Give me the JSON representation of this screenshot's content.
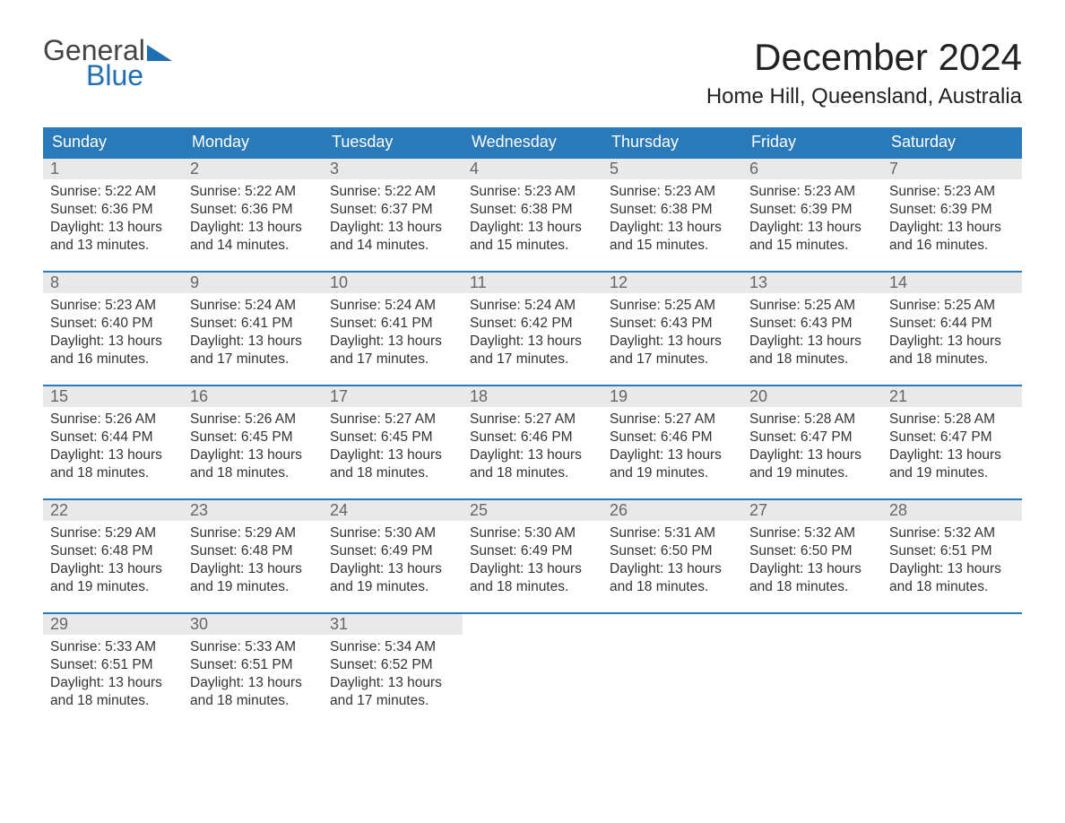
{
  "logo": {
    "text1": "General",
    "text2": "Blue",
    "color1": "#444444",
    "color2": "#1f6fb2"
  },
  "title": "December 2024",
  "location": "Home Hill, Queensland, Australia",
  "header_bg": "#2a7ab9",
  "daynum_bg": "#e9e9e9",
  "week_border": "#2a7ab9",
  "day_headers": [
    "Sunday",
    "Monday",
    "Tuesday",
    "Wednesday",
    "Thursday",
    "Friday",
    "Saturday"
  ],
  "weeks": [
    [
      {
        "n": "1",
        "sr": "Sunrise: 5:22 AM",
        "ss": "Sunset: 6:36 PM",
        "d1": "Daylight: 13 hours",
        "d2": "and 13 minutes."
      },
      {
        "n": "2",
        "sr": "Sunrise: 5:22 AM",
        "ss": "Sunset: 6:36 PM",
        "d1": "Daylight: 13 hours",
        "d2": "and 14 minutes."
      },
      {
        "n": "3",
        "sr": "Sunrise: 5:22 AM",
        "ss": "Sunset: 6:37 PM",
        "d1": "Daylight: 13 hours",
        "d2": "and 14 minutes."
      },
      {
        "n": "4",
        "sr": "Sunrise: 5:23 AM",
        "ss": "Sunset: 6:38 PM",
        "d1": "Daylight: 13 hours",
        "d2": "and 15 minutes."
      },
      {
        "n": "5",
        "sr": "Sunrise: 5:23 AM",
        "ss": "Sunset: 6:38 PM",
        "d1": "Daylight: 13 hours",
        "d2": "and 15 minutes."
      },
      {
        "n": "6",
        "sr": "Sunrise: 5:23 AM",
        "ss": "Sunset: 6:39 PM",
        "d1": "Daylight: 13 hours",
        "d2": "and 15 minutes."
      },
      {
        "n": "7",
        "sr": "Sunrise: 5:23 AM",
        "ss": "Sunset: 6:39 PM",
        "d1": "Daylight: 13 hours",
        "d2": "and 16 minutes."
      }
    ],
    [
      {
        "n": "8",
        "sr": "Sunrise: 5:23 AM",
        "ss": "Sunset: 6:40 PM",
        "d1": "Daylight: 13 hours",
        "d2": "and 16 minutes."
      },
      {
        "n": "9",
        "sr": "Sunrise: 5:24 AM",
        "ss": "Sunset: 6:41 PM",
        "d1": "Daylight: 13 hours",
        "d2": "and 17 minutes."
      },
      {
        "n": "10",
        "sr": "Sunrise: 5:24 AM",
        "ss": "Sunset: 6:41 PM",
        "d1": "Daylight: 13 hours",
        "d2": "and 17 minutes."
      },
      {
        "n": "11",
        "sr": "Sunrise: 5:24 AM",
        "ss": "Sunset: 6:42 PM",
        "d1": "Daylight: 13 hours",
        "d2": "and 17 minutes."
      },
      {
        "n": "12",
        "sr": "Sunrise: 5:25 AM",
        "ss": "Sunset: 6:43 PM",
        "d1": "Daylight: 13 hours",
        "d2": "and 17 minutes."
      },
      {
        "n": "13",
        "sr": "Sunrise: 5:25 AM",
        "ss": "Sunset: 6:43 PM",
        "d1": "Daylight: 13 hours",
        "d2": "and 18 minutes."
      },
      {
        "n": "14",
        "sr": "Sunrise: 5:25 AM",
        "ss": "Sunset: 6:44 PM",
        "d1": "Daylight: 13 hours",
        "d2": "and 18 minutes."
      }
    ],
    [
      {
        "n": "15",
        "sr": "Sunrise: 5:26 AM",
        "ss": "Sunset: 6:44 PM",
        "d1": "Daylight: 13 hours",
        "d2": "and 18 minutes."
      },
      {
        "n": "16",
        "sr": "Sunrise: 5:26 AM",
        "ss": "Sunset: 6:45 PM",
        "d1": "Daylight: 13 hours",
        "d2": "and 18 minutes."
      },
      {
        "n": "17",
        "sr": "Sunrise: 5:27 AM",
        "ss": "Sunset: 6:45 PM",
        "d1": "Daylight: 13 hours",
        "d2": "and 18 minutes."
      },
      {
        "n": "18",
        "sr": "Sunrise: 5:27 AM",
        "ss": "Sunset: 6:46 PM",
        "d1": "Daylight: 13 hours",
        "d2": "and 18 minutes."
      },
      {
        "n": "19",
        "sr": "Sunrise: 5:27 AM",
        "ss": "Sunset: 6:46 PM",
        "d1": "Daylight: 13 hours",
        "d2": "and 19 minutes."
      },
      {
        "n": "20",
        "sr": "Sunrise: 5:28 AM",
        "ss": "Sunset: 6:47 PM",
        "d1": "Daylight: 13 hours",
        "d2": "and 19 minutes."
      },
      {
        "n": "21",
        "sr": "Sunrise: 5:28 AM",
        "ss": "Sunset: 6:47 PM",
        "d1": "Daylight: 13 hours",
        "d2": "and 19 minutes."
      }
    ],
    [
      {
        "n": "22",
        "sr": "Sunrise: 5:29 AM",
        "ss": "Sunset: 6:48 PM",
        "d1": "Daylight: 13 hours",
        "d2": "and 19 minutes."
      },
      {
        "n": "23",
        "sr": "Sunrise: 5:29 AM",
        "ss": "Sunset: 6:48 PM",
        "d1": "Daylight: 13 hours",
        "d2": "and 19 minutes."
      },
      {
        "n": "24",
        "sr": "Sunrise: 5:30 AM",
        "ss": "Sunset: 6:49 PM",
        "d1": "Daylight: 13 hours",
        "d2": "and 19 minutes."
      },
      {
        "n": "25",
        "sr": "Sunrise: 5:30 AM",
        "ss": "Sunset: 6:49 PM",
        "d1": "Daylight: 13 hours",
        "d2": "and 18 minutes."
      },
      {
        "n": "26",
        "sr": "Sunrise: 5:31 AM",
        "ss": "Sunset: 6:50 PM",
        "d1": "Daylight: 13 hours",
        "d2": "and 18 minutes."
      },
      {
        "n": "27",
        "sr": "Sunrise: 5:32 AM",
        "ss": "Sunset: 6:50 PM",
        "d1": "Daylight: 13 hours",
        "d2": "and 18 minutes."
      },
      {
        "n": "28",
        "sr": "Sunrise: 5:32 AM",
        "ss": "Sunset: 6:51 PM",
        "d1": "Daylight: 13 hours",
        "d2": "and 18 minutes."
      }
    ],
    [
      {
        "n": "29",
        "sr": "Sunrise: 5:33 AM",
        "ss": "Sunset: 6:51 PM",
        "d1": "Daylight: 13 hours",
        "d2": "and 18 minutes."
      },
      {
        "n": "30",
        "sr": "Sunrise: 5:33 AM",
        "ss": "Sunset: 6:51 PM",
        "d1": "Daylight: 13 hours",
        "d2": "and 18 minutes."
      },
      {
        "n": "31",
        "sr": "Sunrise: 5:34 AM",
        "ss": "Sunset: 6:52 PM",
        "d1": "Daylight: 13 hours",
        "d2": "and 17 minutes."
      },
      null,
      null,
      null,
      null
    ]
  ]
}
